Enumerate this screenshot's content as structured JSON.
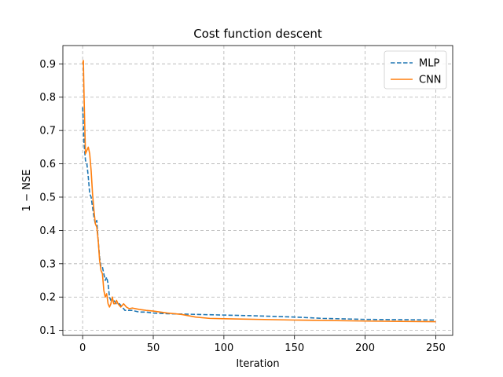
{
  "chart_data": {
    "type": "line",
    "title": "Cost function descent",
    "xlabel": "Iteration",
    "ylabel": "1 − NSE",
    "xlim": [
      -14,
      262
    ],
    "ylim": [
      0.085,
      0.955
    ],
    "xticks": [
      0,
      50,
      100,
      150,
      200,
      250
    ],
    "yticks": [
      0.1,
      0.2,
      0.3,
      0.4,
      0.5,
      0.6,
      0.7,
      0.8,
      0.9
    ],
    "grid": true,
    "legend_position": "top-right",
    "series": [
      {
        "name": "MLP",
        "color": "#1f77b4",
        "style": "dashed",
        "x": [
          0,
          1,
          2,
          3,
          4,
          5,
          6,
          7,
          8,
          9,
          10,
          11,
          12,
          13,
          14,
          15,
          16,
          17,
          18,
          19,
          20,
          22,
          24,
          26,
          28,
          30,
          32,
          35,
          40,
          45,
          50,
          60,
          70,
          80,
          100,
          120,
          150,
          170,
          200,
          230,
          250
        ],
        "y": [
          0.77,
          0.66,
          0.61,
          0.6,
          0.56,
          0.51,
          0.5,
          0.47,
          0.44,
          0.42,
          0.43,
          0.37,
          0.32,
          0.29,
          0.29,
          0.27,
          0.25,
          0.26,
          0.24,
          0.2,
          0.19,
          0.19,
          0.18,
          0.18,
          0.17,
          0.16,
          0.16,
          0.16,
          0.155,
          0.155,
          0.152,
          0.15,
          0.149,
          0.148,
          0.146,
          0.144,
          0.14,
          0.136,
          0.133,
          0.132,
          0.131
        ]
      },
      {
        "name": "CNN",
        "color": "#ff7f0e",
        "style": "solid",
        "x": [
          0,
          0.5,
          1,
          2,
          3,
          4,
          5,
          6,
          7,
          8,
          9,
          10,
          11,
          12,
          13,
          14,
          15,
          16,
          17,
          18,
          19,
          20,
          21,
          22,
          23,
          24,
          25,
          27,
          29,
          30,
          31,
          33,
          35,
          40,
          45,
          50,
          60,
          70,
          80,
          90,
          100,
          150,
          200,
          250
        ],
        "y": [
          0.9,
          0.91,
          0.8,
          0.63,
          0.64,
          0.65,
          0.63,
          0.58,
          0.51,
          0.46,
          0.42,
          0.41,
          0.37,
          0.31,
          0.28,
          0.27,
          0.22,
          0.2,
          0.21,
          0.18,
          0.17,
          0.18,
          0.2,
          0.18,
          0.18,
          0.19,
          0.18,
          0.17,
          0.18,
          0.175,
          0.17,
          0.165,
          0.167,
          0.163,
          0.16,
          0.158,
          0.152,
          0.148,
          0.14,
          0.136,
          0.135,
          0.131,
          0.128,
          0.126
        ]
      }
    ]
  }
}
